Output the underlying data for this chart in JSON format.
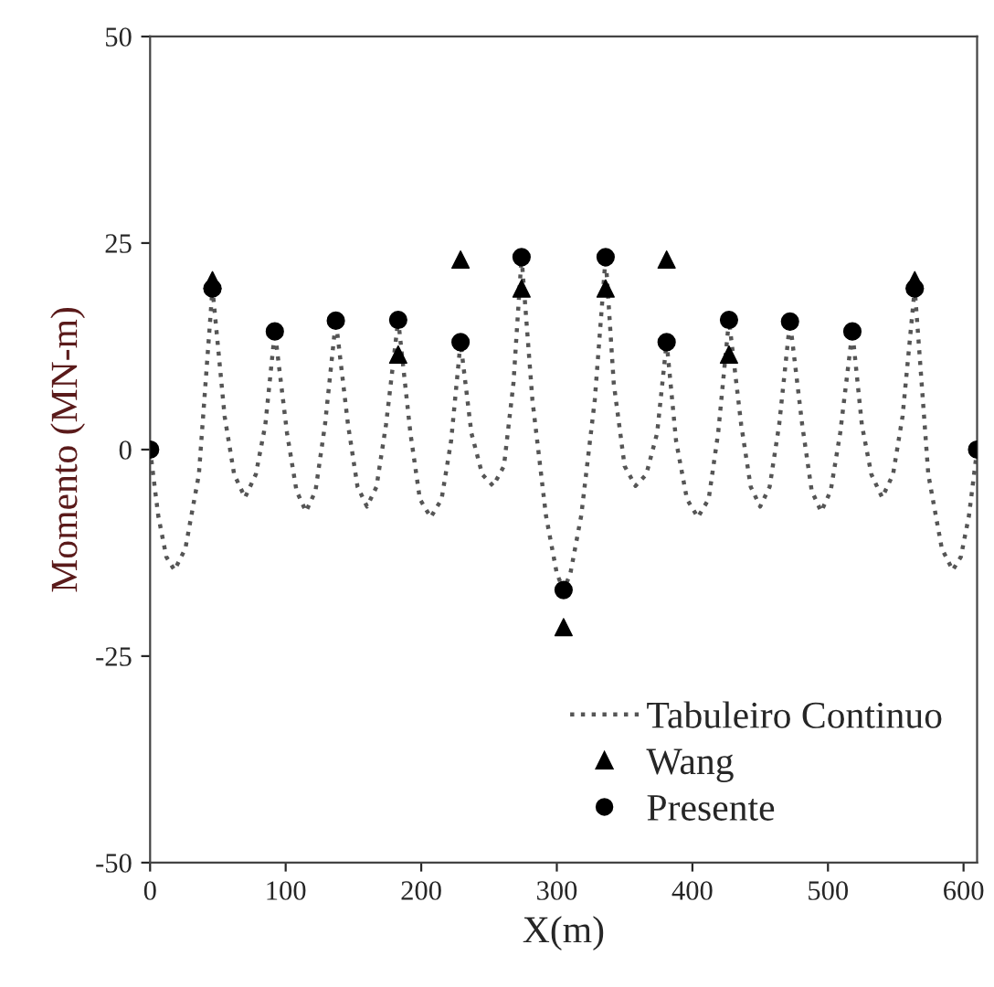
{
  "chart_data": {
    "type": "line",
    "xlabel": "X(m)",
    "ylabel": "Momento (MN-m)",
    "xlim": [
      0,
      610
    ],
    "ylim": [
      -50,
      50
    ],
    "xticks": [
      0,
      100,
      200,
      300,
      400,
      500,
      600
    ],
    "yticks": [
      -50,
      -25,
      0,
      25,
      50
    ],
    "grid": false,
    "legend": "bottom right",
    "series": [
      {
        "name": "Tabuleiro Continuo",
        "color": "#555555",
        "line_style": "dotted",
        "marker": "none",
        "x": [
          0,
          6,
          12,
          18,
          26,
          36,
          46,
          55,
          62,
          70,
          78,
          85,
          92,
          101,
          108,
          115,
          122,
          129,
          137,
          146,
          153,
          160,
          167,
          174,
          183,
          192,
          199,
          207,
          215,
          222,
          229,
          237,
          245,
          253,
          261,
          268,
          274,
          282,
          292,
          300,
          305,
          310,
          318,
          328,
          336,
          342,
          350,
          358,
          366,
          374,
          381,
          388,
          396,
          404,
          412,
          419,
          427,
          436,
          443,
          450,
          457,
          464,
          472,
          481,
          488,
          495,
          502,
          509,
          518,
          525,
          532,
          540,
          548,
          555,
          564,
          574,
          584,
          592,
          598,
          604,
          610
        ],
        "values": [
          0,
          -8,
          -13,
          -14.6,
          -12,
          -3,
          19.5,
          4,
          -3,
          -5.8,
          -3,
          3,
          14.3,
          2,
          -5,
          -7.5,
          -5,
          3,
          15.6,
          3,
          -4.5,
          -6.9,
          -4.5,
          3,
          15.7,
          2,
          -6,
          -8.2,
          -6,
          1,
          13,
          2,
          -3,
          -4.4,
          -2,
          8,
          23.3,
          6,
          -8,
          -15,
          -17,
          -15,
          -8,
          6,
          23.3,
          8,
          -2,
          -4.4,
          -3,
          2,
          13,
          1,
          -6,
          -8.2,
          -6,
          2,
          15.7,
          3,
          -4.5,
          -6.9,
          -4.5,
          3,
          15.5,
          3,
          -5,
          -7.5,
          -5,
          2,
          14.3,
          3,
          -3,
          -5.8,
          -3,
          4,
          19.5,
          -3,
          -12,
          -14.6,
          -13,
          -8,
          0
        ]
      },
      {
        "name": "Wang",
        "type": "scatter",
        "color": "#000000",
        "marker": "triangle",
        "x": [
          46,
          183,
          229,
          274,
          305,
          336,
          381,
          427,
          564
        ],
        "values": [
          20.5,
          11.5,
          23,
          19.5,
          -21.5,
          19.5,
          23,
          11.5,
          20.5
        ]
      },
      {
        "name": "Presente",
        "type": "scatter",
        "color": "#000000",
        "marker": "circle",
        "x": [
          0,
          46,
          92,
          137,
          183,
          229,
          274,
          305,
          336,
          381,
          427,
          472,
          518,
          564,
          610
        ],
        "values": [
          0,
          19.5,
          14.3,
          15.6,
          15.7,
          13,
          23.3,
          -17,
          23.3,
          13,
          15.7,
          15.5,
          14.3,
          19.5,
          0
        ]
      }
    ]
  }
}
